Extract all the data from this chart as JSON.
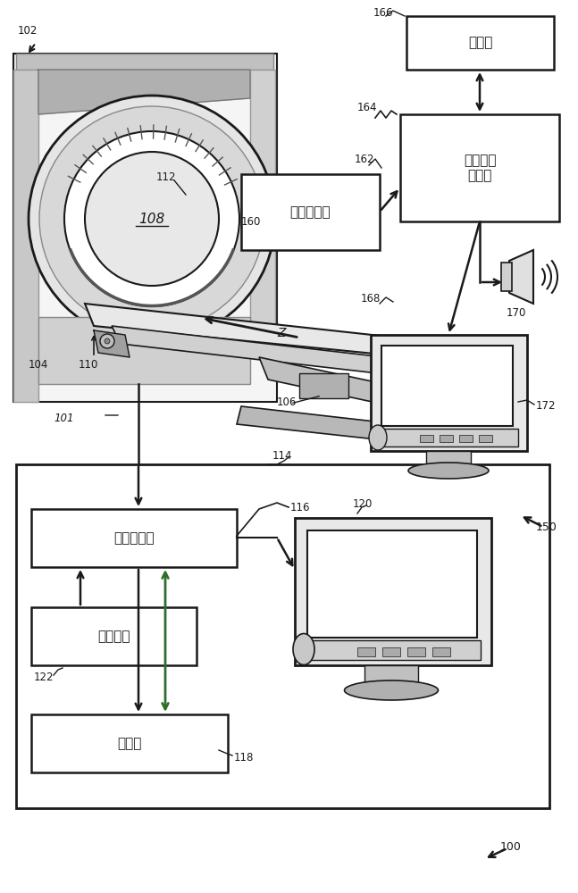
{
  "bg_color": "#ffffff",
  "lc": "#1a1a1a",
  "gc": "#2d6e2d",
  "box_texts": {
    "storage_top": "存储器",
    "intervention_processor": "介入推进\n处理器",
    "breath_monitor": "呼吸监测器",
    "image_processor": "图像处理器",
    "user_input": "用户输入",
    "storage_bottom": "存储器"
  },
  "figsize": [
    6.47,
    10.0
  ],
  "dpi": 100
}
